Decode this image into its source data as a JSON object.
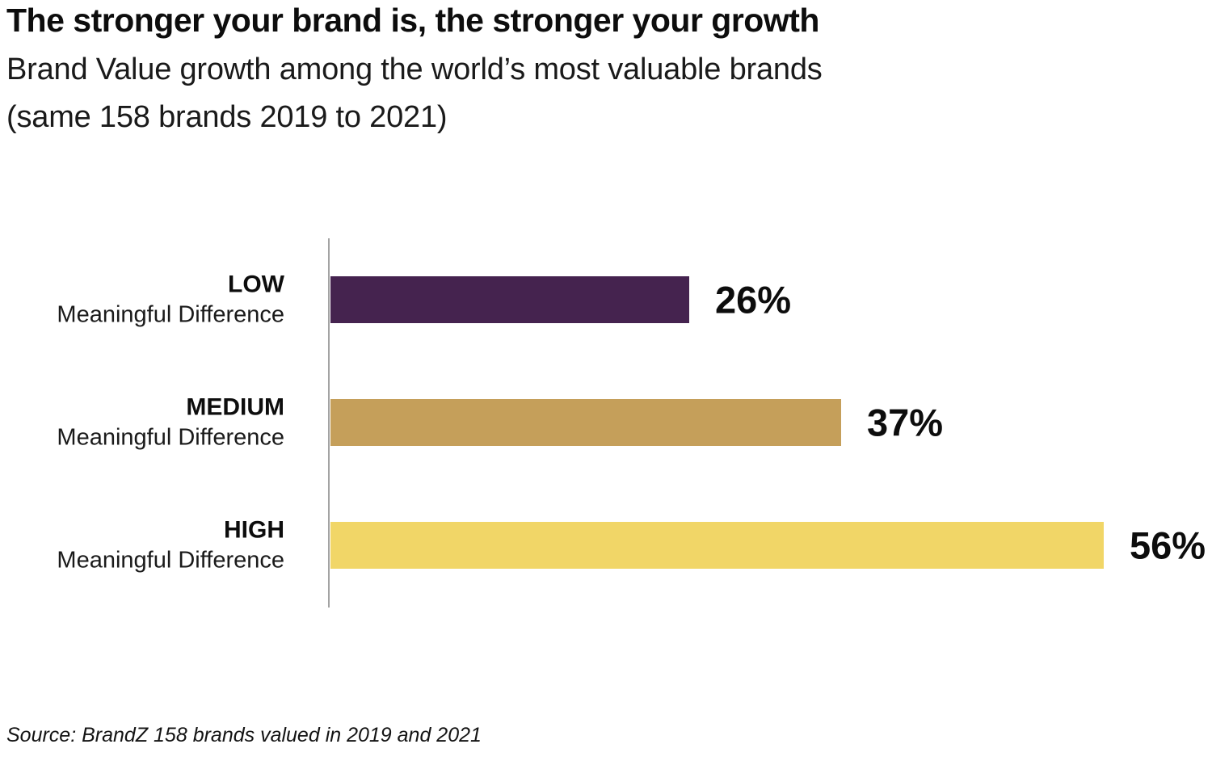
{
  "page": {
    "title": "The stronger your brand is, the stronger your growth",
    "subtitle_line1": "Brand Value growth among the world’s most valuable brands",
    "subtitle_line2": "(same 158 brands 2019 to 2021)",
    "source": "Source: BrandZ 158 brands valued in 2019 and 2021"
  },
  "chart_data": {
    "type": "bar",
    "orientation": "horizontal",
    "title": "The stronger your brand is, the stronger your growth",
    "subtitle": "Brand Value growth among the world’s most valuable brands (same 158 brands 2019 to 2021)",
    "xlabel": "",
    "ylabel": "",
    "xlim": [
      0,
      56
    ],
    "grid": false,
    "legend": "none",
    "categories": [
      "LOW Meaningful Difference",
      "MEDIUM Meaningful Difference",
      "HIGH Meaningful Difference"
    ],
    "values": [
      26,
      37,
      56
    ],
    "series": [
      {
        "label_emphasis": "LOW",
        "label_sub": "Meaningful Difference",
        "value": 26,
        "display_value": "26%",
        "color": "#45234f"
      },
      {
        "label_emphasis": "MEDIUM",
        "label_sub": "Meaningful Difference",
        "value": 37,
        "display_value": "37%",
        "color": "#c59f5a"
      },
      {
        "label_emphasis": "HIGH",
        "label_sub": "Meaningful Difference",
        "value": 56,
        "display_value": "56%",
        "color": "#f1d667"
      }
    ],
    "colors": {
      "low": "#45234f",
      "medium": "#c59f5a",
      "high": "#f1d667",
      "axis_line": "#a3a3a3",
      "text": "#0d0d0d"
    },
    "source": "Source: BrandZ 158 brands valued in 2019 and 2021"
  }
}
